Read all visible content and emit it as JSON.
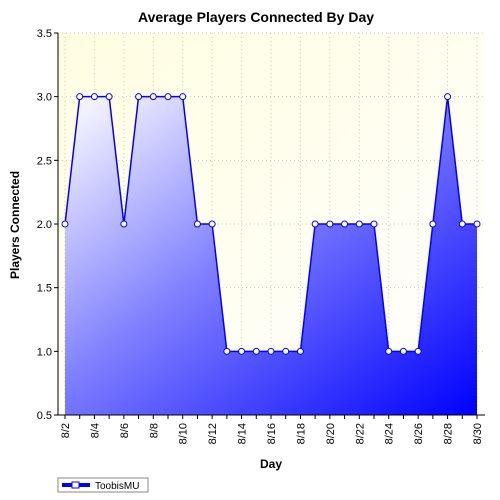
{
  "chart_data": {
    "type": "area",
    "title": "Average Players Connected By Day",
    "xlabel": "Day",
    "ylabel": "Players Connected",
    "ylim": [
      0.5,
      3.5
    ],
    "yticks": [
      "0.5",
      "1.0",
      "1.5",
      "2.0",
      "2.5",
      "3.0",
      "3.5"
    ],
    "x": [
      "8/2",
      "8/3",
      "8/4",
      "8/5",
      "8/6",
      "8/7",
      "8/8",
      "8/9",
      "8/10",
      "8/11",
      "8/12",
      "8/13",
      "8/14",
      "8/15",
      "8/16",
      "8/17",
      "8/18",
      "8/19",
      "8/20",
      "8/21",
      "8/22",
      "8/23",
      "8/24",
      "8/25",
      "8/26",
      "8/27",
      "8/28",
      "8/29",
      "8/30"
    ],
    "xtick_labels": [
      "8/2",
      "8/4",
      "8/6",
      "8/8",
      "8/10",
      "8/12",
      "8/14",
      "8/16",
      "8/18",
      "8/20",
      "8/22",
      "8/24",
      "8/26",
      "8/28",
      "8/30"
    ],
    "series": [
      {
        "name": "ToobisMU",
        "color": "#0000ff",
        "values": [
          2,
          3,
          3,
          3,
          2,
          3,
          3,
          3,
          3,
          2,
          2,
          1,
          1,
          1,
          1,
          1,
          1,
          2,
          2,
          2,
          2,
          2,
          1,
          1,
          1,
          2,
          3,
          2,
          2
        ]
      }
    ],
    "grid": true,
    "legend": "bottom-left",
    "background": "#fffde0"
  }
}
